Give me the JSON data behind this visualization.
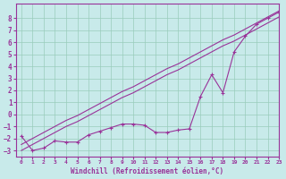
{
  "title": "",
  "xlabel": "Windchill (Refroidissement éolien,°C)",
  "ylabel": "",
  "bg_color": "#c8eaea",
  "grid_color": "#99ccbb",
  "line_color": "#993399",
  "xlim": [
    -0.5,
    23
  ],
  "ylim": [
    -3.5,
    9.2
  ],
  "xticks": [
    0,
    1,
    2,
    3,
    4,
    5,
    6,
    7,
    8,
    9,
    10,
    11,
    12,
    13,
    14,
    15,
    16,
    17,
    18,
    19,
    20,
    21,
    22,
    23
  ],
  "yticks": [
    -3,
    -2,
    -1,
    0,
    1,
    2,
    3,
    4,
    5,
    6,
    7,
    8
  ],
  "x_data": [
    0,
    1,
    2,
    3,
    4,
    5,
    6,
    7,
    8,
    9,
    10,
    11,
    12,
    13,
    14,
    15,
    16,
    17,
    18,
    19,
    20,
    21,
    22,
    23
  ],
  "y_straight1": [
    -3.0,
    -2.5,
    -2.0,
    -1.5,
    -1.0,
    -0.6,
    -0.1,
    0.4,
    0.9,
    1.4,
    1.8,
    2.3,
    2.8,
    3.3,
    3.7,
    4.2,
    4.7,
    5.2,
    5.7,
    6.1,
    6.6,
    7.1,
    7.6,
    8.1
  ],
  "y_straight2": [
    -2.5,
    -2.0,
    -1.5,
    -1.0,
    -0.5,
    -0.1,
    0.4,
    0.9,
    1.4,
    1.9,
    2.3,
    2.8,
    3.3,
    3.8,
    4.2,
    4.7,
    5.2,
    5.7,
    6.2,
    6.6,
    7.1,
    7.6,
    8.1,
    8.6
  ],
  "y_zigzag": [
    -1.8,
    -3.0,
    -2.8,
    -2.2,
    -2.3,
    -2.3,
    -1.7,
    -1.4,
    -1.1,
    -0.8,
    -0.8,
    -0.9,
    -1.5,
    -1.5,
    -1.3,
    -1.2,
    1.5,
    3.3,
    1.8,
    5.2,
    6.5,
    7.5,
    8.0,
    8.5
  ]
}
